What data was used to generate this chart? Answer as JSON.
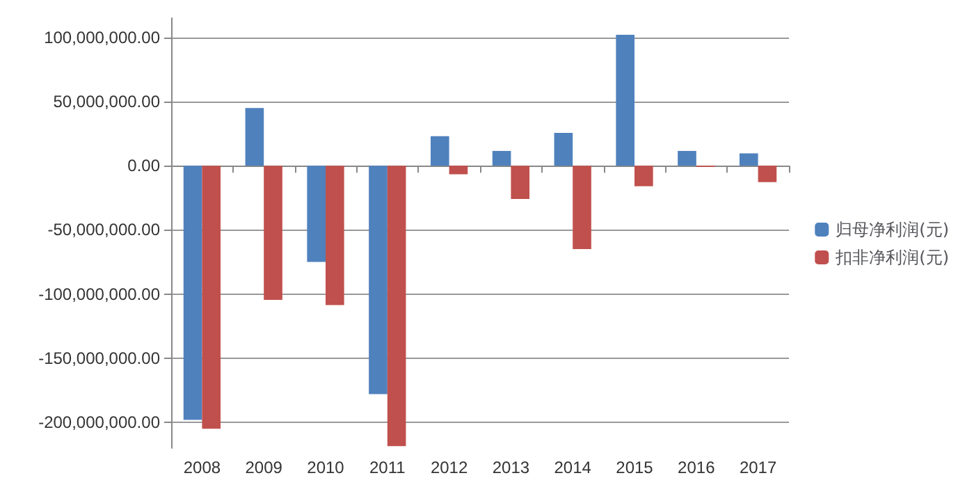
{
  "chart_data": {
    "type": "bar",
    "categories": [
      "2008",
      "2009",
      "2010",
      "2011",
      "2012",
      "2013",
      "2014",
      "2015",
      "2016",
      "2017"
    ],
    "series": [
      {
        "name": "归母净利润(元)",
        "color": "#4f81bd",
        "values": [
          -198000000,
          45000000,
          -75000000,
          -178000000,
          23000000,
          11500000,
          25500000,
          102000000,
          11500000,
          9600000
        ]
      },
      {
        "name": "扣非净利润(元)",
        "color": "#c0504d",
        "values": [
          -205000000,
          -104500000,
          -108600000,
          -218500000,
          -6700000,
          -26000000,
          -65000000,
          -16000000,
          -1000000,
          -12800000
        ]
      }
    ],
    "ylim": [
      -220000000,
      115000000
    ],
    "yticks": [
      {
        "value": -200000000,
        "label": "-200,000,000.00"
      },
      {
        "value": -150000000,
        "label": "-150,000,000.00"
      },
      {
        "value": -100000000,
        "label": "-100,000,000.00"
      },
      {
        "value": -50000000,
        "label": "-50,000,000.00"
      },
      {
        "value": 0,
        "label": "0.00"
      },
      {
        "value": 50000000,
        "label": "50,000,000.00"
      },
      {
        "value": 100000000,
        "label": "100,000,000.00"
      }
    ],
    "grid": "y",
    "legend": "right"
  }
}
